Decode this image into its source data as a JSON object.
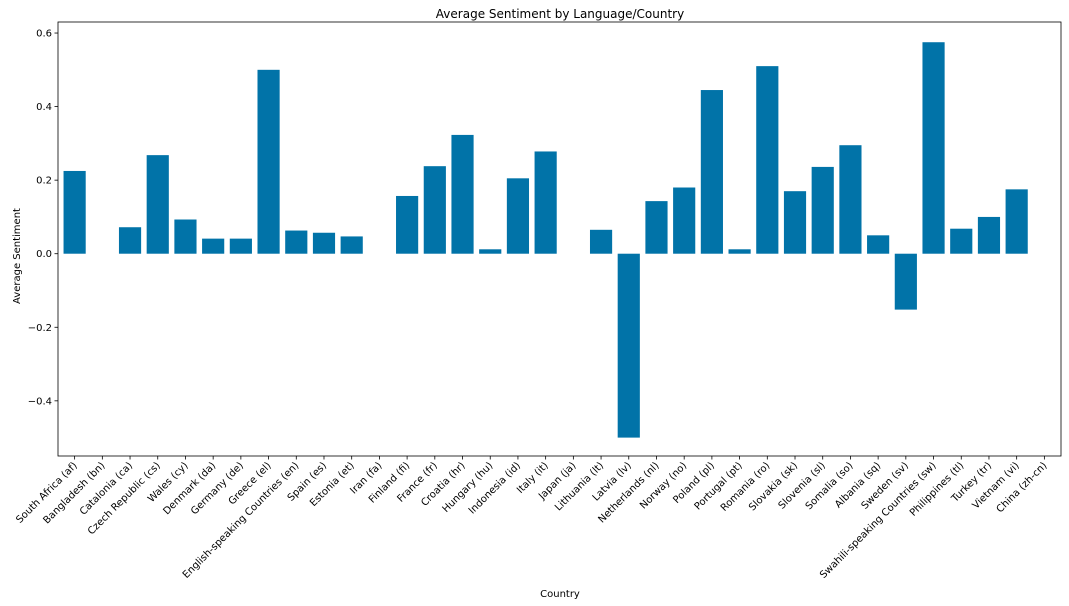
{
  "chart_data": {
    "type": "bar",
    "title": "Average Sentiment by Language/Country",
    "xlabel": "Country",
    "ylabel": "Average Sentiment",
    "ylim": [
      -0.55,
      0.63
    ],
    "yticks": [
      -0.4,
      -0.2,
      0.0,
      0.2,
      0.4,
      0.6
    ],
    "ytick_labels": [
      "−0.4",
      "−0.2",
      "0.0",
      "0.2",
      "0.4",
      "0.6"
    ],
    "grid": false,
    "bar_color": "#0173a8",
    "categories": [
      "South Africa (af)",
      "Bangladesh (bn)",
      "Catalonia (ca)",
      "Czech Republic (cs)",
      "Wales (cy)",
      "Denmark (da)",
      "Germany (de)",
      "Greece (el)",
      "English-speaking Countries (en)",
      "Spain (es)",
      "Estonia (et)",
      "Iran (fa)",
      "Finland (fi)",
      "France (fr)",
      "Croatia (hr)",
      "Hungary (hu)",
      "Indonesia (id)",
      "Italy (it)",
      "Japan (ja)",
      "Lithuania (lt)",
      "Latvia (lv)",
      "Netherlands (nl)",
      "Norway (no)",
      "Poland (pl)",
      "Portugal (pt)",
      "Romania (ro)",
      "Slovakia (sk)",
      "Slovenia (sl)",
      "Somalia (so)",
      "Albania (sq)",
      "Sweden (sv)",
      "Swahili-speaking Countries (sw)",
      "Philippines (tl)",
      "Turkey (tr)",
      "Vietnam (vi)",
      "China (zh-cn)"
    ],
    "values": [
      0.225,
      0.0,
      0.072,
      0.268,
      0.093,
      0.041,
      0.041,
      0.5,
      0.063,
      0.057,
      0.047,
      0.0,
      0.157,
      0.238,
      0.323,
      0.012,
      0.205,
      0.278,
      0.0,
      0.065,
      -0.5,
      0.143,
      0.18,
      0.445,
      0.012,
      0.51,
      0.17,
      0.236,
      0.295,
      0.05,
      -0.152,
      0.575,
      0.068,
      0.1,
      0.175,
      0.0
    ]
  }
}
